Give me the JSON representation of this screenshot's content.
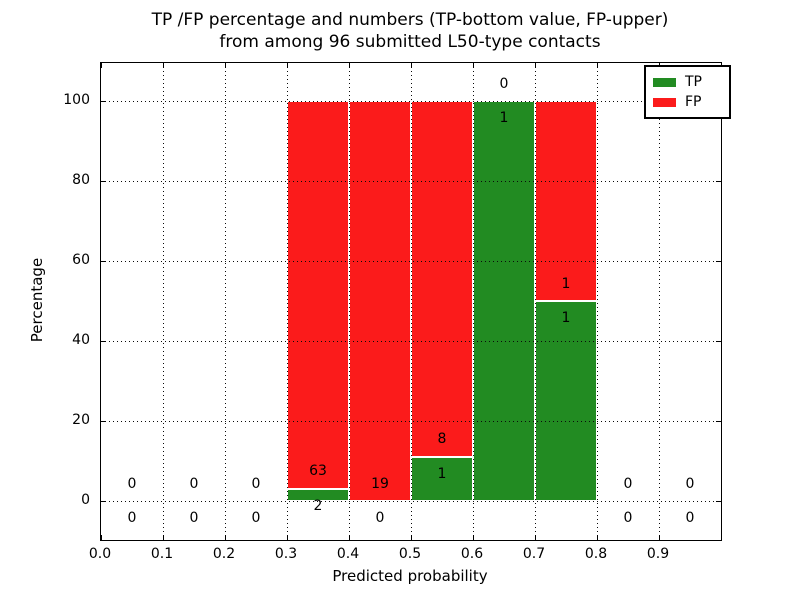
{
  "chart_data": {
    "type": "bar",
    "stacked": true,
    "title": "TP /FP percentage and numbers (TP-bottom value, FP-upper)\nfrom among 96 submitted L50-type contacts",
    "title_line1": "TP /FP percentage and numbers (TP-bottom value, FP-upper)",
    "title_line2": "from among 96 submitted L50-type contacts",
    "xlabel": "Predicted probability",
    "ylabel": "Percentage",
    "xlim": [
      0.0,
      1.0
    ],
    "ylim": [
      -10,
      110
    ],
    "grid": "dotted",
    "legend_position": "upper right",
    "x_tick_labels": [
      "0.0",
      "0.1",
      "0.2",
      "0.3",
      "0.4",
      "0.5",
      "0.6",
      "0.7",
      "0.8",
      "0.9"
    ],
    "y_tick_values": [
      0,
      20,
      40,
      60,
      80,
      100
    ],
    "y_tick_labels": [
      "0",
      "20",
      "40",
      "60",
      "80",
      "100"
    ],
    "bin_width": 0.1,
    "total_contacts": 96,
    "bins": [
      {
        "range": [
          0.0,
          0.1
        ],
        "tp": 0,
        "fp": 0
      },
      {
        "range": [
          0.1,
          0.2
        ],
        "tp": 0,
        "fp": 0
      },
      {
        "range": [
          0.2,
          0.3
        ],
        "tp": 0,
        "fp": 0
      },
      {
        "range": [
          0.3,
          0.4
        ],
        "tp": 2,
        "fp": 63
      },
      {
        "range": [
          0.4,
          0.5
        ],
        "tp": 0,
        "fp": 19
      },
      {
        "range": [
          0.5,
          0.6
        ],
        "tp": 1,
        "fp": 8
      },
      {
        "range": [
          0.6,
          0.7
        ],
        "tp": 1,
        "fp": 0
      },
      {
        "range": [
          0.7,
          0.8
        ],
        "tp": 1,
        "fp": 1
      },
      {
        "range": [
          0.8,
          0.9
        ],
        "tp": 0,
        "fp": 0
      },
      {
        "range": [
          0.9,
          1.0
        ],
        "tp": 0,
        "fp": 0
      }
    ],
    "colors": {
      "tp": "#228B22",
      "fp": "#fb1b1b"
    },
    "legend": [
      {
        "label": "TP",
        "color": "#228B22"
      },
      {
        "label": "FP",
        "color": "#fb1b1b"
      }
    ]
  }
}
